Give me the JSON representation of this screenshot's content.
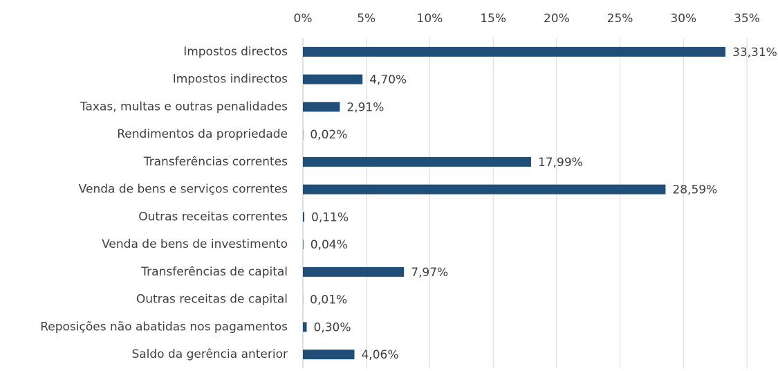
{
  "chart_data": {
    "type": "bar",
    "orientation": "horizontal",
    "categories": [
      "Impostos directos",
      "Impostos indirectos",
      "Taxas, multas e outras penalidades",
      "Rendimentos da propriedade",
      "Transferências correntes",
      "Venda de bens e serviços correntes",
      "Outras receitas correntes",
      "Venda de bens de investimento",
      "Transferências de capital",
      "Outras receitas de capital",
      "Reposições não abatidas nos pagamentos",
      "Saldo da gerência anterior"
    ],
    "values": [
      33.31,
      4.7,
      2.91,
      0.02,
      17.99,
      28.59,
      0.11,
      0.04,
      7.97,
      0.01,
      0.3,
      4.06
    ],
    "value_labels": [
      "33,31%",
      "4,70%",
      "2,91%",
      "0,02%",
      "17,99%",
      "28,59%",
      "0,11%",
      "0,04%",
      "7,97%",
      "0,01%",
      "0,30%",
      "4,06%"
    ],
    "color": "#1f4e79",
    "xlim": [
      0,
      35
    ],
    "xticks": [
      {
        "value": 0,
        "label": "0%"
      },
      {
        "value": 5,
        "label": "5%"
      },
      {
        "value": 10,
        "label": "10%"
      },
      {
        "value": 15,
        "label": "15%"
      },
      {
        "value": 20,
        "label": "20%"
      },
      {
        "value": 25,
        "label": "25%"
      },
      {
        "value": 30,
        "label": "30%"
      },
      {
        "value": 35,
        "label": "35%"
      }
    ],
    "grid": true
  }
}
